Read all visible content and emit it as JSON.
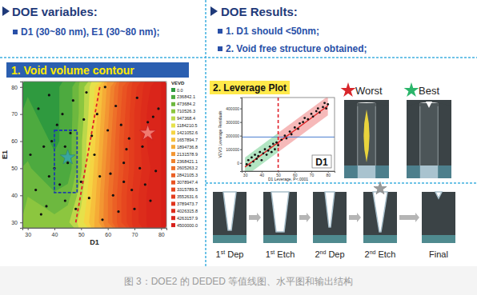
{
  "header": {
    "left_title": "DOE variables:",
    "left_item": "D1 (30~80 nm), E1 (30~80 nm);",
    "right_title": "DOE Results:",
    "right_items": [
      "1. D1 should <50nm;",
      "2. Void free structure obtained;"
    ]
  },
  "chart_data": [
    {
      "type": "contour",
      "title": "1. Void volume contour",
      "x_label": "D1",
      "y_label": "E1",
      "legend_title": "VEVD",
      "x": [
        30,
        35,
        40,
        45,
        50,
        55,
        60,
        65,
        70,
        75,
        80
      ],
      "y": [
        30,
        40,
        50,
        60,
        70,
        80
      ],
      "z": [
        [
          900000,
          900000,
          800000,
          900000,
          1300000,
          1900000,
          2600000,
          3300000,
          3900000,
          4300000,
          4500000
        ],
        [
          700000,
          600000,
          500000,
          600000,
          1100000,
          1800000,
          2600000,
          3300000,
          3900000,
          4300000,
          4500000
        ],
        [
          500000,
          400000,
          300000,
          300000,
          900000,
          1700000,
          2500000,
          3200000,
          3800000,
          4200000,
          4500000
        ],
        [
          400000,
          300000,
          200000,
          300000,
          900000,
          1600000,
          2400000,
          3200000,
          3800000,
          4300000,
          4500000
        ],
        [
          300000,
          200000,
          200000,
          300000,
          800000,
          1500000,
          2300000,
          3100000,
          3800000,
          4300000,
          4500000
        ],
        [
          200000,
          200000,
          200000,
          300000,
          800000,
          1400000,
          2200000,
          3000000,
          3700000,
          4200000,
          4500000
        ]
      ],
      "color_levels": [
        0,
        236842.1,
        473684.2,
        710526.3,
        947368.4,
        1184210.5,
        1421052.6,
        1657894.7,
        1894736.8,
        2131578.9,
        2368421.1,
        2605263.2,
        2842105.3,
        3078947.4,
        3315789.5,
        3552631.6,
        3789473.7,
        4026315.8,
        4263157.9,
        4500000
      ],
      "color_level_labels": [
        "0.0",
        "236842.1",
        "473684.2",
        "710526.3",
        "947368.4",
        "1184210.5",
        "1421052.6",
        "1657894.7",
        "1894736.8",
        "2131578.9",
        "2368421.1",
        "2605263.2",
        "2842105.3",
        "3078947.4",
        "3315789.5",
        "3552631.6",
        "3789473.7",
        "4026315.8",
        "4263157.9",
        "4500000.0"
      ],
      "colors": [
        "#2f9a3f",
        "#4daa3f",
        "#6db83f",
        "#8cc63f",
        "#bcd84a",
        "#e6e14a",
        "#f5d442",
        "#f6c03c",
        "#f5ab36",
        "#f39632",
        "#f0822d",
        "#ee7029",
        "#eb6025",
        "#e95322",
        "#e6471f",
        "#e33d1d",
        "#e0341c",
        "#dd2c1b",
        "#da251a",
        "#d71f19"
      ],
      "xlim": [
        28,
        82
      ],
      "ylim": [
        28,
        82
      ],
      "xticks": [
        30,
        40,
        50,
        60,
        70,
        80
      ],
      "yticks": [
        30,
        40,
        50,
        60,
        70,
        80
      ],
      "points": {
        "x": [
          34,
          36,
          38,
          41,
          44,
          47,
          33,
          39,
          45,
          52,
          56,
          60,
          63,
          67,
          71,
          75,
          78,
          35,
          42,
          48,
          54,
          58,
          62,
          66,
          70,
          74,
          77,
          31,
          37,
          43,
          50,
          55,
          61,
          65,
          69,
          73,
          79,
          40,
          46,
          53,
          57,
          64,
          68,
          72,
          76,
          38,
          51,
          59,
          66,
          44
        ],
        "y": [
          72,
          58,
          47,
          66,
          38,
          75,
          42,
          60,
          52,
          78,
          70,
          64,
          73,
          57,
          76,
          67,
          49,
          33,
          44,
          35,
          62,
          31,
          40,
          52,
          35,
          44,
          69,
          55,
          36,
          70,
          45,
          55,
          48,
          66,
          42,
          58,
          72,
          50,
          63,
          39,
          47,
          34,
          61,
          50,
          38,
          77,
          68,
          80,
          45,
          58
        ]
      },
      "cut_line": {
        "x": [
          48,
          57
        ],
        "y": [
          30,
          80
        ]
      },
      "window": {
        "x": [
          40,
          48.5
        ],
        "y": [
          41,
          64
        ]
      },
      "best_point": {
        "x": 45,
        "y": 54
      },
      "worst_point": {
        "x": 75,
        "y": 63
      }
    },
    {
      "type": "scatter",
      "title": "2. Leverage Plot",
      "x_label": "D1 Leverage, P<.0001",
      "y_label": "VEVD Leverage Residuals",
      "panel_label": "D1",
      "x": [
        31,
        32,
        33,
        34,
        35,
        36,
        37,
        38,
        39,
        40,
        41,
        42,
        43,
        44,
        45,
        46,
        47,
        48,
        49,
        50,
        52,
        54,
        55,
        57,
        58,
        60,
        62,
        63,
        65,
        66,
        68,
        70,
        71,
        73,
        74,
        75,
        77,
        78,
        79,
        80
      ],
      "y": [
        -10000,
        20000,
        -20000,
        40000,
        10000,
        60000,
        30000,
        50000,
        80000,
        20000,
        70000,
        100000,
        60000,
        90000,
        120000,
        80000,
        140000,
        100000,
        150000,
        130000,
        170000,
        200000,
        180000,
        230000,
        210000,
        260000,
        250000,
        290000,
        300000,
        330000,
        320000,
        360000,
        340000,
        380000,
        400000,
        370000,
        410000,
        440000,
        400000,
        430000
      ],
      "xlim": [
        28,
        84
      ],
      "ylim": [
        -60000,
        480000
      ],
      "xticks": [
        30,
        40,
        50,
        60,
        70,
        80
      ],
      "yticks": [
        0,
        100000,
        200000,
        300000,
        400000
      ],
      "fit_line": {
        "x": [
          30,
          80
        ],
        "y": [
          -30000,
          420000
        ]
      },
      "band_width": 70000,
      "mean": 190000,
      "threshold_x": 50
    }
  ],
  "structures": {
    "worst": "Worst",
    "best": "Best"
  },
  "process_steps": [
    "1st Dep",
    "1st Etch",
    "2nd Dep",
    "2nd Etch",
    "Final"
  ],
  "caption": "图 3：DOE2 的 DEDED 等值线图、水平图和输出结构"
}
